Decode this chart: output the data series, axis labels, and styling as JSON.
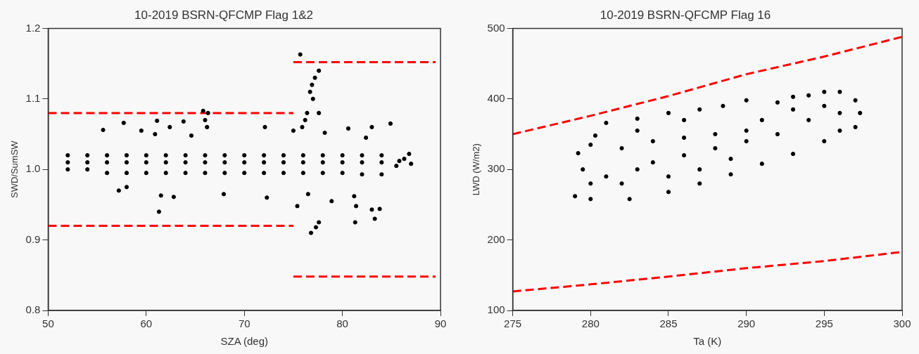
{
  "chart_data": [
    {
      "type": "scatter",
      "title": "10-2019 BSRN-QFCMP Flag 1&2",
      "xlabel": "SZA (deg)",
      "ylabel": "SWD/SumSW",
      "xlim": [
        50,
        90
      ],
      "ylim": [
        0.8,
        1.2
      ],
      "xticks": [
        50,
        60,
        70,
        80,
        90
      ],
      "yticks": [
        {
          "value": 0.8,
          "label": "0.8"
        },
        {
          "value": 0.9,
          "label": "0.9"
        },
        {
          "value": 1.0,
          "label": "1.0"
        },
        {
          "value": 1.1,
          "label": "1.1"
        },
        {
          "value": 1.2,
          "label": "1.2"
        }
      ],
      "marker": "circle",
      "series": [
        {
          "color": "#000000",
          "x": [
            52,
            52,
            52,
            54,
            54,
            54,
            56,
            56,
            56,
            58,
            58,
            58,
            60,
            60,
            60,
            62,
            62,
            62,
            64,
            64,
            64,
            66,
            66,
            66,
            68,
            68,
            68,
            70,
            70,
            70,
            72,
            72,
            72,
            74,
            74,
            74,
            76,
            76,
            76,
            78,
            78,
            78,
            80,
            80,
            80,
            82,
            82,
            82,
            84,
            84,
            84,
            85.5,
            85.8,
            86.3,
            86.8,
            87.0,
            75.7,
            77.6,
            77.2,
            76.9,
            76.7,
            77.0,
            76.4,
            76.2,
            75.9,
            75.0,
            77.6,
            65.8,
            66.3,
            66.0,
            66.2,
            61.1,
            63.8,
            57.7,
            62.4,
            55.6,
            59.5,
            60.9,
            64.6,
            72.1,
            83.0,
            84.9,
            80.6,
            78.2,
            82.4,
            61.3,
            76.8,
            77.3,
            77.6,
            81.3,
            83.3,
            83.0,
            83.8,
            75.4,
            78.9,
            72.3,
            62.8,
            61.5,
            67.9,
            57.2,
            58.0,
            81.4,
            81.2,
            76.5
          ],
          "values": [
            1.02,
            1.0,
            1.01,
            1.02,
            1.0,
            1.01,
            1.02,
            0.995,
            1.01,
            1.02,
            0.995,
            1.01,
            1.02,
            0.995,
            1.01,
            1.02,
            0.995,
            1.01,
            1.02,
            0.995,
            1.01,
            1.02,
            0.995,
            1.01,
            1.02,
            0.995,
            1.01,
            1.02,
            0.995,
            1.01,
            1.02,
            0.995,
            1.01,
            1.02,
            0.995,
            1.01,
            1.02,
            0.995,
            1.01,
            1.02,
            0.995,
            1.01,
            1.02,
            0.995,
            1.01,
            1.02,
            0.993,
            1.01,
            1.02,
            0.993,
            1.01,
            1.005,
            1.012,
            1.015,
            1.022,
            1.008,
            1.163,
            1.14,
            1.13,
            1.12,
            1.11,
            1.1,
            1.08,
            1.07,
            1.06,
            1.055,
            1.08,
            1.083,
            1.08,
            1.07,
            1.06,
            1.069,
            1.068,
            1.066,
            1.06,
            1.056,
            1.055,
            1.05,
            1.048,
            1.06,
            1.06,
            1.065,
            1.058,
            1.052,
            1.045,
            0.94,
            0.91,
            0.918,
            0.925,
            0.925,
            0.93,
            0.943,
            0.944,
            0.948,
            0.955,
            0.96,
            0.961,
            0.963,
            0.965,
            0.97,
            0.975,
            0.948,
            0.962,
            0.965
          ]
        },
        {
          "type": "line",
          "color": "#ff0000",
          "line_style": "dashed",
          "marker": "none",
          "x": [
            50,
            75
          ],
          "values": [
            1.08,
            1.08
          ]
        },
        {
          "type": "line",
          "color": "#ff0000",
          "line_style": "dashed",
          "marker": "none",
          "x": [
            50,
            75
          ],
          "values": [
            0.92,
            0.92
          ]
        },
        {
          "type": "line",
          "color": "#ff0000",
          "line_style": "dashed",
          "marker": "none",
          "x": [
            75,
            89.5
          ],
          "values": [
            1.152,
            1.152
          ]
        },
        {
          "type": "line",
          "color": "#ff0000",
          "line_style": "dashed",
          "marker": "none",
          "x": [
            75,
            89.5
          ],
          "values": [
            0.848,
            0.848
          ]
        }
      ]
    },
    {
      "type": "scatter",
      "title": "10-2019 BSRN-QFCMP Flag 16",
      "xlabel": "Ta (K)",
      "ylabel": "LWD (W/m2)",
      "xlim": [
        275,
        300
      ],
      "ylim": [
        100,
        500
      ],
      "xticks": [
        275,
        280,
        285,
        290,
        295,
        300
      ],
      "yticks": [
        100,
        200,
        300,
        400,
        500
      ],
      "marker": "circle",
      "series": [
        {
          "color": "#000000",
          "x": [
            279,
            280,
            282.5,
            285,
            287,
            289,
            291,
            293,
            295,
            297,
            297.3,
            297,
            296,
            295,
            294,
            293,
            292,
            290,
            288.5,
            287,
            285,
            283,
            281,
            280.3,
            280,
            279.2,
            279.5,
            280,
            282,
            284,
            286,
            288,
            290,
            284,
            286,
            288,
            290,
            292,
            294,
            296,
            283,
            285,
            287,
            289,
            281,
            282,
            293,
            291,
            286,
            283,
            296,
            295
          ],
          "values": [
            262,
            258,
            258,
            268,
            280,
            293,
            308,
            322,
            340,
            360,
            380,
            398,
            410,
            410,
            405,
            403,
            395,
            398,
            390,
            385,
            380,
            372,
            366,
            348,
            335,
            323,
            300,
            280,
            330,
            340,
            345,
            350,
            355,
            310,
            320,
            330,
            340,
            350,
            370,
            380,
            300,
            290,
            300,
            315,
            290,
            280,
            385,
            370,
            370,
            355,
            355,
            390
          ]
        },
        {
          "type": "line",
          "color": "#ff0000",
          "line_style": "dashed",
          "marker": "none",
          "x": [
            275,
            280,
            285,
            290,
            295,
            300
          ],
          "values": [
            350,
            376,
            404,
            435,
            460,
            488
          ]
        },
        {
          "type": "line",
          "color": "#ff0000",
          "line_style": "dashed",
          "marker": "none",
          "x": [
            275,
            280,
            285,
            290,
            295,
            300
          ],
          "values": [
            127,
            137,
            148,
            160,
            170,
            183
          ]
        }
      ]
    }
  ]
}
